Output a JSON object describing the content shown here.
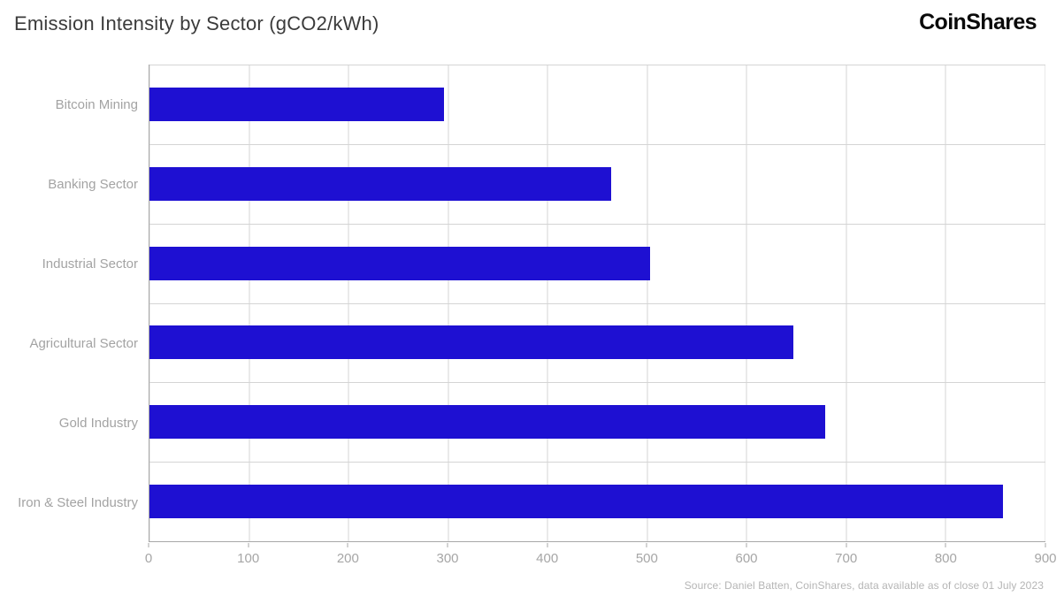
{
  "header": {
    "title": "Emission Intensity by Sector (gCO2/kWh)",
    "brand": "CoinShares"
  },
  "chart_data": {
    "type": "bar",
    "orientation": "horizontal",
    "title": "Emission Intensity by Sector (gCO2/kWh)",
    "categories": [
      "Bitcoin Mining",
      "Banking Sector",
      "Industrial Sector",
      "Agricultural Sector",
      "Gold Industry",
      "Iron & Steel Industry"
    ],
    "values": [
      296,
      464,
      503,
      647,
      679,
      857
    ],
    "xlabel": "",
    "ylabel": "",
    "xlim": [
      0,
      900
    ],
    "xticks": [
      0,
      100,
      200,
      300,
      400,
      500,
      600,
      700,
      800,
      900
    ],
    "grid": true,
    "legend": false,
    "bar_color": "#1E10D2"
  },
  "footer": {
    "source": "Source: Daniel Batten, CoinShares, data available as of close 01 July 2023"
  },
  "colors": {
    "bar": "#1E10D2",
    "grid": "#d4d4d4",
    "axis": "#a8a8a8",
    "category_label": "#a3a3a3",
    "tick_label": "#a6a6a6",
    "title": "#3b3b3b",
    "brand": "#0a0a0a",
    "source": "#b5b5b5"
  }
}
